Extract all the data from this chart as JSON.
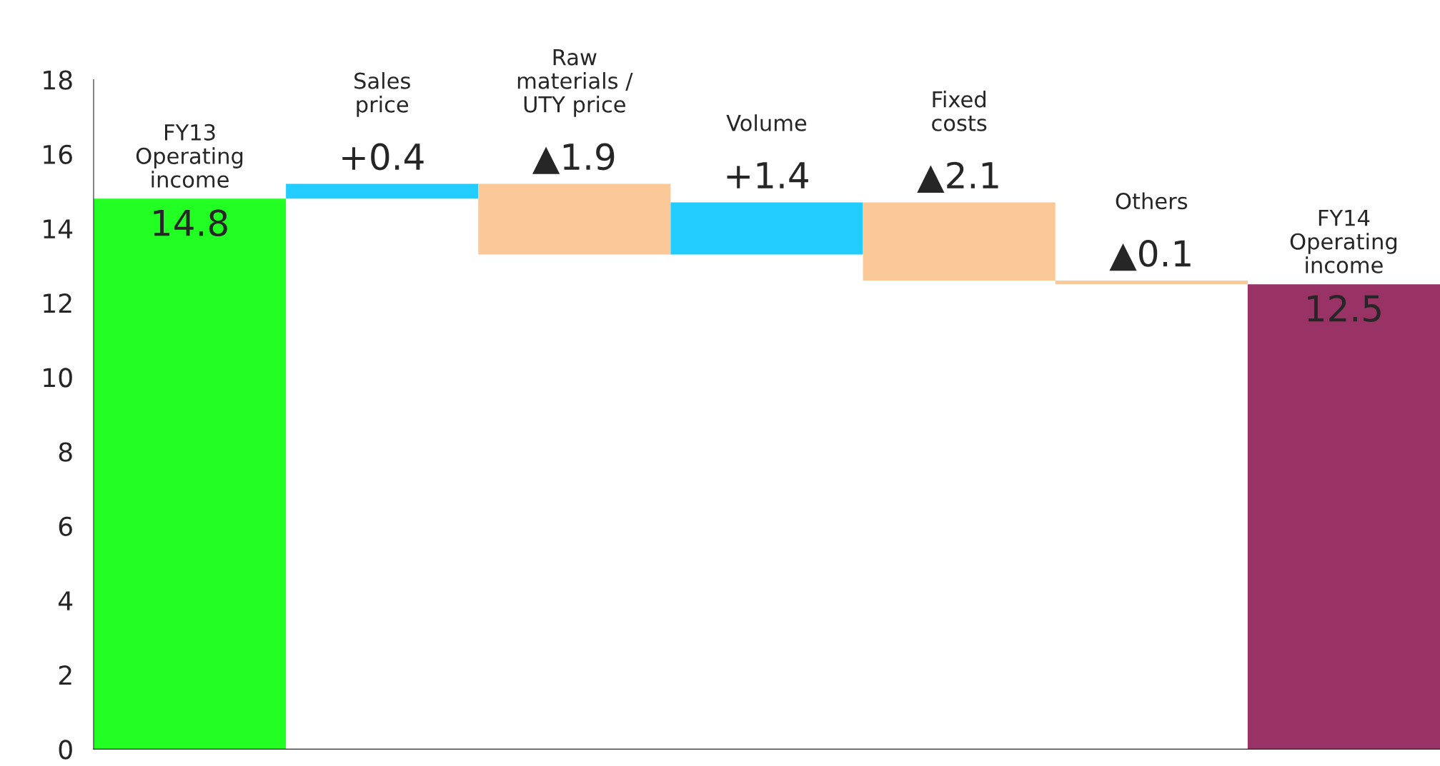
{
  "chart_data": {
    "type": "bar",
    "categories": [
      "FY13\nOperating\nincome",
      "Sales\nprice",
      "Raw\nmaterials /\nUTY price",
      "Volume",
      "Fixed\ncosts",
      "Others",
      "FY14\nOperating\nincome"
    ],
    "values": [
      14.8,
      0.4,
      -1.9,
      1.4,
      -2.1,
      -0.1,
      12.5
    ],
    "base": [
      0,
      14.8,
      15.2,
      13.3,
      14.7,
      12.6,
      0
    ],
    "value_labels": [
      "14.8",
      "+0.4",
      "▲1.9",
      "+1.4",
      "▲2.1",
      "▲0.1",
      "12.5"
    ],
    "colors": [
      "#22ff22",
      "#22ccff",
      "#fbc897",
      "#22ccff",
      "#fbc897",
      "#fbc897",
      "#993366"
    ],
    "ylim": [
      0,
      18
    ],
    "yticks": [
      0,
      2,
      4,
      6,
      8,
      10,
      12,
      14,
      16,
      18
    ],
    "tick_labels": "y",
    "grid": false,
    "legend": false
  }
}
